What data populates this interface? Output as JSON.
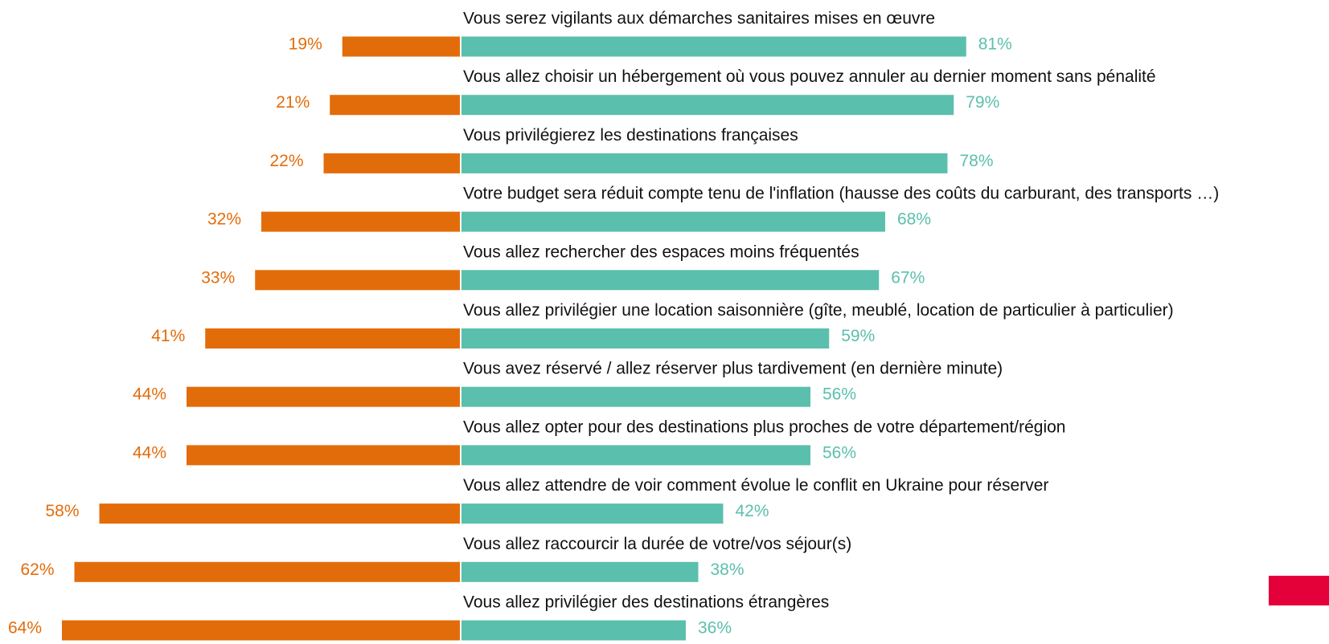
{
  "chart_data": {
    "type": "diverging_bar",
    "categories": [
      "Vous serez vigilants aux démarches sanitaires mises en œuvre",
      "Vous allez choisir un hébergement où vous pouvez annuler au dernier moment sans pénalité",
      "Vous privilégierez les destinations françaises",
      "Votre budget sera réduit compte tenu de l'inflation (hausse des coûts du carburant, des transports …)",
      "Vous allez rechercher des espaces moins fréquentés",
      "Vous allez privilégier une location saisonnière (gîte, meublé, location de particulier à particulier)",
      "Vous avez réservé / allez réserver plus tardivement (en dernière minute)",
      "Vous allez opter pour des destinations plus proches de votre département/région",
      "Vous allez attendre de voir comment évolue le conflit en Ukraine pour réserver",
      "Vous allez raccourcir la durée de votre/vos séjour(s)",
      "Vous allez privilégier des destinations étrangères"
    ],
    "series": [
      {
        "color": "#e36c0a",
        "values": [
          19,
          21,
          22,
          32,
          33,
          41,
          44,
          44,
          58,
          62,
          64
        ],
        "value_labels": [
          "19%",
          "21%",
          "22%",
          "32%",
          "33%",
          "41%",
          "44%",
          "44%",
          "58%",
          "62%",
          "64%"
        ]
      },
      {
        "color": "#5bbfad",
        "values": [
          81,
          79,
          78,
          68,
          67,
          59,
          56,
          56,
          42,
          38,
          36
        ],
        "value_labels": [
          "81%",
          "79%",
          "78%",
          "68%",
          "67%",
          "59%",
          "56%",
          "56%",
          "42%",
          "38%",
          "36%"
        ]
      }
    ]
  }
}
